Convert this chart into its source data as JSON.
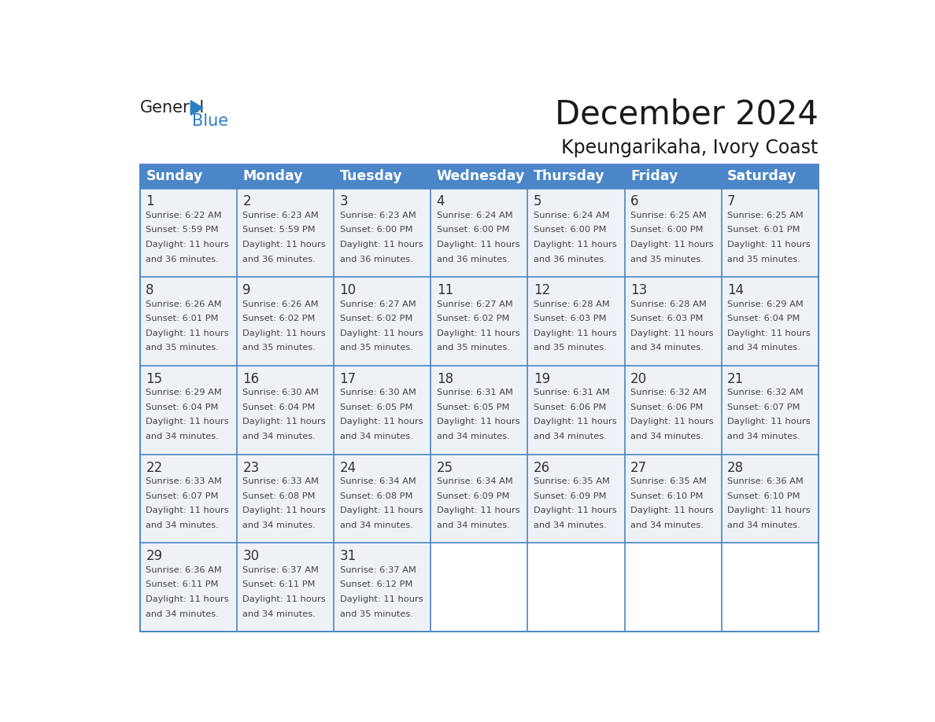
{
  "title": "December 2024",
  "subtitle": "Kpeungarikaha, Ivory Coast",
  "header_bg_color": "#4a86c8",
  "header_text_color": "#ffffff",
  "cell_bg_color": "#eef2f7",
  "cell_bg_empty": "#ffffff",
  "day_number_color": "#333333",
  "cell_text_color": "#444444",
  "grid_color": "#4a86c8",
  "days_of_week": [
    "Sunday",
    "Monday",
    "Tuesday",
    "Wednesday",
    "Thursday",
    "Friday",
    "Saturday"
  ],
  "weeks": [
    [
      {
        "day": 1,
        "sunrise": "6:22 AM",
        "sunset": "5:59 PM",
        "daylight_line1": "Daylight: 11 hours",
        "daylight_line2": "and 36 minutes."
      },
      {
        "day": 2,
        "sunrise": "6:23 AM",
        "sunset": "5:59 PM",
        "daylight_line1": "Daylight: 11 hours",
        "daylight_line2": "and 36 minutes."
      },
      {
        "day": 3,
        "sunrise": "6:23 AM",
        "sunset": "6:00 PM",
        "daylight_line1": "Daylight: 11 hours",
        "daylight_line2": "and 36 minutes."
      },
      {
        "day": 4,
        "sunrise": "6:24 AM",
        "sunset": "6:00 PM",
        "daylight_line1": "Daylight: 11 hours",
        "daylight_line2": "and 36 minutes."
      },
      {
        "day": 5,
        "sunrise": "6:24 AM",
        "sunset": "6:00 PM",
        "daylight_line1": "Daylight: 11 hours",
        "daylight_line2": "and 36 minutes."
      },
      {
        "day": 6,
        "sunrise": "6:25 AM",
        "sunset": "6:00 PM",
        "daylight_line1": "Daylight: 11 hours",
        "daylight_line2": "and 35 minutes."
      },
      {
        "day": 7,
        "sunrise": "6:25 AM",
        "sunset": "6:01 PM",
        "daylight_line1": "Daylight: 11 hours",
        "daylight_line2": "and 35 minutes."
      }
    ],
    [
      {
        "day": 8,
        "sunrise": "6:26 AM",
        "sunset": "6:01 PM",
        "daylight_line1": "Daylight: 11 hours",
        "daylight_line2": "and 35 minutes."
      },
      {
        "day": 9,
        "sunrise": "6:26 AM",
        "sunset": "6:02 PM",
        "daylight_line1": "Daylight: 11 hours",
        "daylight_line2": "and 35 minutes."
      },
      {
        "day": 10,
        "sunrise": "6:27 AM",
        "sunset": "6:02 PM",
        "daylight_line1": "Daylight: 11 hours",
        "daylight_line2": "and 35 minutes."
      },
      {
        "day": 11,
        "sunrise": "6:27 AM",
        "sunset": "6:02 PM",
        "daylight_line1": "Daylight: 11 hours",
        "daylight_line2": "and 35 minutes."
      },
      {
        "day": 12,
        "sunrise": "6:28 AM",
        "sunset": "6:03 PM",
        "daylight_line1": "Daylight: 11 hours",
        "daylight_line2": "and 35 minutes."
      },
      {
        "day": 13,
        "sunrise": "6:28 AM",
        "sunset": "6:03 PM",
        "daylight_line1": "Daylight: 11 hours",
        "daylight_line2": "and 34 minutes."
      },
      {
        "day": 14,
        "sunrise": "6:29 AM",
        "sunset": "6:04 PM",
        "daylight_line1": "Daylight: 11 hours",
        "daylight_line2": "and 34 minutes."
      }
    ],
    [
      {
        "day": 15,
        "sunrise": "6:29 AM",
        "sunset": "6:04 PM",
        "daylight_line1": "Daylight: 11 hours",
        "daylight_line2": "and 34 minutes."
      },
      {
        "day": 16,
        "sunrise": "6:30 AM",
        "sunset": "6:04 PM",
        "daylight_line1": "Daylight: 11 hours",
        "daylight_line2": "and 34 minutes."
      },
      {
        "day": 17,
        "sunrise": "6:30 AM",
        "sunset": "6:05 PM",
        "daylight_line1": "Daylight: 11 hours",
        "daylight_line2": "and 34 minutes."
      },
      {
        "day": 18,
        "sunrise": "6:31 AM",
        "sunset": "6:05 PM",
        "daylight_line1": "Daylight: 11 hours",
        "daylight_line2": "and 34 minutes."
      },
      {
        "day": 19,
        "sunrise": "6:31 AM",
        "sunset": "6:06 PM",
        "daylight_line1": "Daylight: 11 hours",
        "daylight_line2": "and 34 minutes."
      },
      {
        "day": 20,
        "sunrise": "6:32 AM",
        "sunset": "6:06 PM",
        "daylight_line1": "Daylight: 11 hours",
        "daylight_line2": "and 34 minutes."
      },
      {
        "day": 21,
        "sunrise": "6:32 AM",
        "sunset": "6:07 PM",
        "daylight_line1": "Daylight: 11 hours",
        "daylight_line2": "and 34 minutes."
      }
    ],
    [
      {
        "day": 22,
        "sunrise": "6:33 AM",
        "sunset": "6:07 PM",
        "daylight_line1": "Daylight: 11 hours",
        "daylight_line2": "and 34 minutes."
      },
      {
        "day": 23,
        "sunrise": "6:33 AM",
        "sunset": "6:08 PM",
        "daylight_line1": "Daylight: 11 hours",
        "daylight_line2": "and 34 minutes."
      },
      {
        "day": 24,
        "sunrise": "6:34 AM",
        "sunset": "6:08 PM",
        "daylight_line1": "Daylight: 11 hours",
        "daylight_line2": "and 34 minutes."
      },
      {
        "day": 25,
        "sunrise": "6:34 AM",
        "sunset": "6:09 PM",
        "daylight_line1": "Daylight: 11 hours",
        "daylight_line2": "and 34 minutes."
      },
      {
        "day": 26,
        "sunrise": "6:35 AM",
        "sunset": "6:09 PM",
        "daylight_line1": "Daylight: 11 hours",
        "daylight_line2": "and 34 minutes."
      },
      {
        "day": 27,
        "sunrise": "6:35 AM",
        "sunset": "6:10 PM",
        "daylight_line1": "Daylight: 11 hours",
        "daylight_line2": "and 34 minutes."
      },
      {
        "day": 28,
        "sunrise": "6:36 AM",
        "sunset": "6:10 PM",
        "daylight_line1": "Daylight: 11 hours",
        "daylight_line2": "and 34 minutes."
      }
    ],
    [
      {
        "day": 29,
        "sunrise": "6:36 AM",
        "sunset": "6:11 PM",
        "daylight_line1": "Daylight: 11 hours",
        "daylight_line2": "and 34 minutes."
      },
      {
        "day": 30,
        "sunrise": "6:37 AM",
        "sunset": "6:11 PM",
        "daylight_line1": "Daylight: 11 hours",
        "daylight_line2": "and 34 minutes."
      },
      {
        "day": 31,
        "sunrise": "6:37 AM",
        "sunset": "6:12 PM",
        "daylight_line1": "Daylight: 11 hours",
        "daylight_line2": "and 35 minutes."
      },
      null,
      null,
      null,
      null
    ]
  ],
  "logo_color1": "#222222",
  "logo_color2": "#2a7fc4",
  "logo_triangle_color": "#2a7fc4"
}
